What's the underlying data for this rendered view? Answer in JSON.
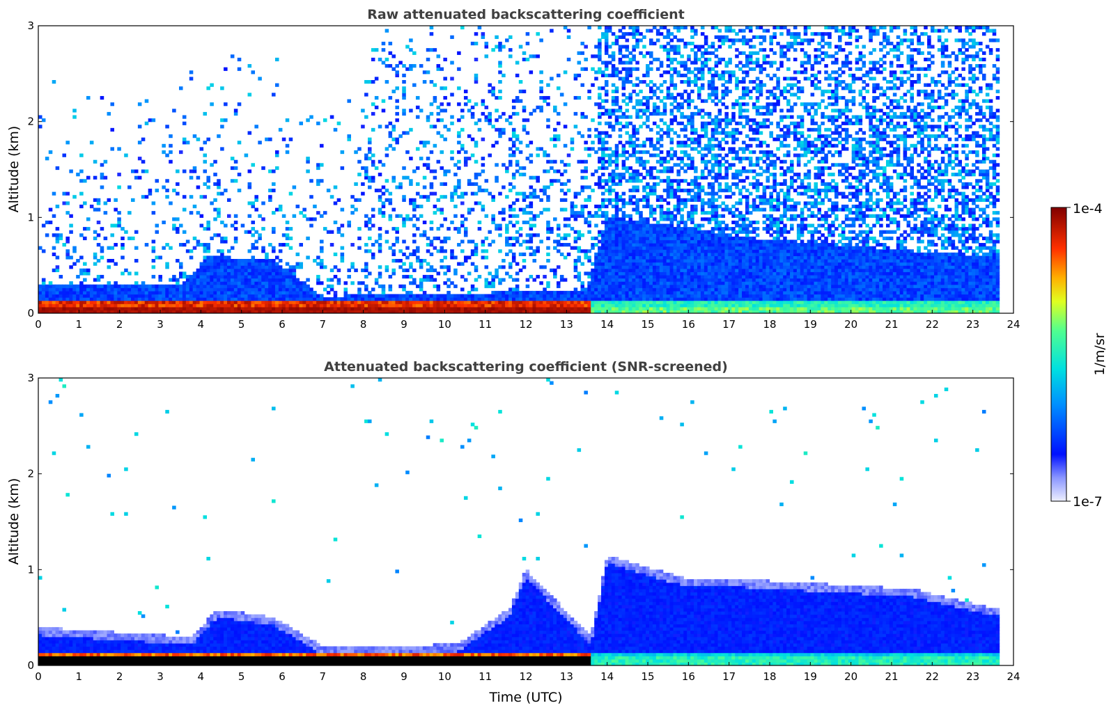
{
  "chart_data": [
    {
      "type": "heatmap",
      "title": "Raw attenuated backscattering coefficient",
      "xlabel": "",
      "ylabel": "Altitude (km)",
      "xlim": [
        0,
        24
      ],
      "ylim": [
        0,
        3
      ],
      "xticks": [
        "0",
        "1",
        "2",
        "3",
        "4",
        "5",
        "6",
        "7",
        "8",
        "9",
        "10",
        "11",
        "12",
        "13",
        "14",
        "15",
        "16",
        "17",
        "18",
        "19",
        "20",
        "21",
        "22",
        "23",
        "24"
      ],
      "yticks": [
        "0",
        "1",
        "2",
        "3"
      ],
      "colormap": "jet",
      "data_end_time": 23.65,
      "features": {
        "surface_layer_top_km": 0.1,
        "high_signal_until_time": 13.6,
        "boundary_layer_top_km": [
          [
            0,
            0.3
          ],
          [
            3.5,
            0.3
          ],
          [
            4.2,
            0.6
          ],
          [
            5.8,
            0.55
          ],
          [
            7,
            0.18
          ],
          [
            10,
            0.2
          ],
          [
            13.5,
            0.25
          ],
          [
            14,
            1.0
          ],
          [
            16,
            0.9
          ],
          [
            17.2,
            0.8
          ],
          [
            21.5,
            0.65
          ],
          [
            23.5,
            0.6
          ]
        ],
        "noise_region_start_km": 0.6
      }
    },
    {
      "type": "heatmap",
      "title": "Attenuated backscattering coefficient (SNR-screened)",
      "xlabel": "Time (UTC)",
      "ylabel": "Altitude (km)",
      "xlim": [
        0,
        24
      ],
      "ylim": [
        0,
        3
      ],
      "xticks": [
        "0",
        "1",
        "2",
        "3",
        "4",
        "5",
        "6",
        "7",
        "8",
        "9",
        "10",
        "11",
        "12",
        "13",
        "14",
        "15",
        "16",
        "17",
        "18",
        "19",
        "20",
        "21",
        "22",
        "23",
        "24"
      ],
      "yticks": [
        "0",
        "1",
        "2",
        "3"
      ],
      "colormap": "jet",
      "data_end_time": 23.65,
      "features": {
        "screened_ground_color": "#000000",
        "layer_top_km": [
          [
            0,
            0.4
          ],
          [
            3.8,
            0.3
          ],
          [
            4.3,
            0.55
          ],
          [
            4.6,
            0.58
          ],
          [
            5.8,
            0.5
          ],
          [
            7,
            0.2
          ],
          [
            10.3,
            0.22
          ],
          [
            11.6,
            0.6
          ],
          [
            12,
            1.0
          ],
          [
            13.6,
            0.3
          ],
          [
            14,
            1.15
          ],
          [
            16,
            0.9
          ],
          [
            17.3,
            0.9
          ],
          [
            21.5,
            0.8
          ],
          [
            23.5,
            0.6
          ]
        ]
      }
    }
  ],
  "colorbar": {
    "label": "1/m/sr",
    "max_label": "1e-4",
    "min_label": "1e-7",
    "colormap": "jet"
  }
}
